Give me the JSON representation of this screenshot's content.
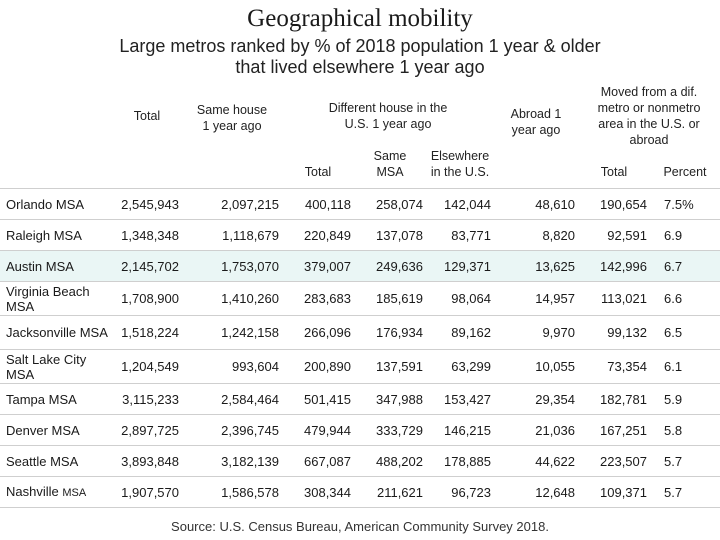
{
  "title": "Geographical mobility",
  "subtitle_line1": "Large metros ranked by % of 2018 population 1 year & older",
  "subtitle_line2": "that lived elsewhere 1 year ago",
  "headers": {
    "total": "Total",
    "same_house": "Same house 1 year ago",
    "diff_house_group": "Different house in the U.S. 1 year ago",
    "diff_total": "Total",
    "same_msa": "Same MSA",
    "elsewhere": "Elsewhere in the U.S.",
    "abroad": "Abroad 1 year ago",
    "moved_group": "Moved from a dif. metro or nonmetro area in the U.S. or abroad",
    "moved_total": "Total",
    "percent": "Percent"
  },
  "rows": [
    {
      "name": "Orlando MSA",
      "total": "2,545,943",
      "same_house": "2,097,215",
      "diff_total": "400,118",
      "same_msa": "258,074",
      "elsewhere": "142,044",
      "abroad": "48,610",
      "moved_total": "190,654",
      "percent": "7.5%"
    },
    {
      "name": "Raleigh MSA",
      "total": "1,348,348",
      "same_house": "1,118,679",
      "diff_total": "220,849",
      "same_msa": "137,078",
      "elsewhere": "83,771",
      "abroad": "8,820",
      "moved_total": "92,591",
      "percent": "6.9"
    },
    {
      "name": "Austin MSA",
      "total": "2,145,702",
      "same_house": "1,753,070",
      "diff_total": "379,007",
      "same_msa": "249,636",
      "elsewhere": "129,371",
      "abroad": "13,625",
      "moved_total": "142,996",
      "percent": "6.7"
    },
    {
      "name": "Virginia Beach MSA",
      "total": "1,708,900",
      "same_house": "1,410,260",
      "diff_total": "283,683",
      "same_msa": "185,619",
      "elsewhere": "98,064",
      "abroad": "14,957",
      "moved_total": "113,021",
      "percent": "6.6"
    },
    {
      "name": "Jacksonville MSA",
      "total": "1,518,224",
      "same_house": "1,242,158",
      "diff_total": "266,096",
      "same_msa": "176,934",
      "elsewhere": "89,162",
      "abroad": "9,970",
      "moved_total": "99,132",
      "percent": "6.5"
    },
    {
      "name": "Salt Lake City MSA",
      "total": "1,204,549",
      "same_house": "993,604",
      "diff_total": "200,890",
      "same_msa": "137,591",
      "elsewhere": "63,299",
      "abroad": "10,055",
      "moved_total": "73,354",
      "percent": "6.1"
    },
    {
      "name": "Tampa MSA",
      "total": "3,115,233",
      "same_house": "2,584,464",
      "diff_total": "501,415",
      "same_msa": "347,988",
      "elsewhere": "153,427",
      "abroad": "29,354",
      "moved_total": "182,781",
      "percent": "5.9"
    },
    {
      "name": "Denver MSA",
      "total": "2,897,725",
      "same_house": "2,396,745",
      "diff_total": "479,944",
      "same_msa": "333,729",
      "elsewhere": "146,215",
      "abroad": "21,036",
      "moved_total": "167,251",
      "percent": "5.8"
    },
    {
      "name": "Seattle MSA",
      "total": "3,893,848",
      "same_house": "3,182,139",
      "diff_total": "667,087",
      "same_msa": "488,202",
      "elsewhere": "178,885",
      "abroad": "44,622",
      "moved_total": "223,507",
      "percent": "5.7"
    },
    {
      "name_main": "Nashville",
      "name_suffix": "MSA",
      "total": "1,907,570",
      "same_house": "1,586,578",
      "diff_total": "308,344",
      "same_msa": "211,621",
      "elsewhere": "96,723",
      "abroad": "12,648",
      "moved_total": "109,371",
      "percent": "5.7"
    }
  ],
  "highlight_row": "Austin MSA",
  "highlight_color": "#eaf6f5",
  "source": "Source: U.S. Census Bureau, American Community Survey 2018."
}
